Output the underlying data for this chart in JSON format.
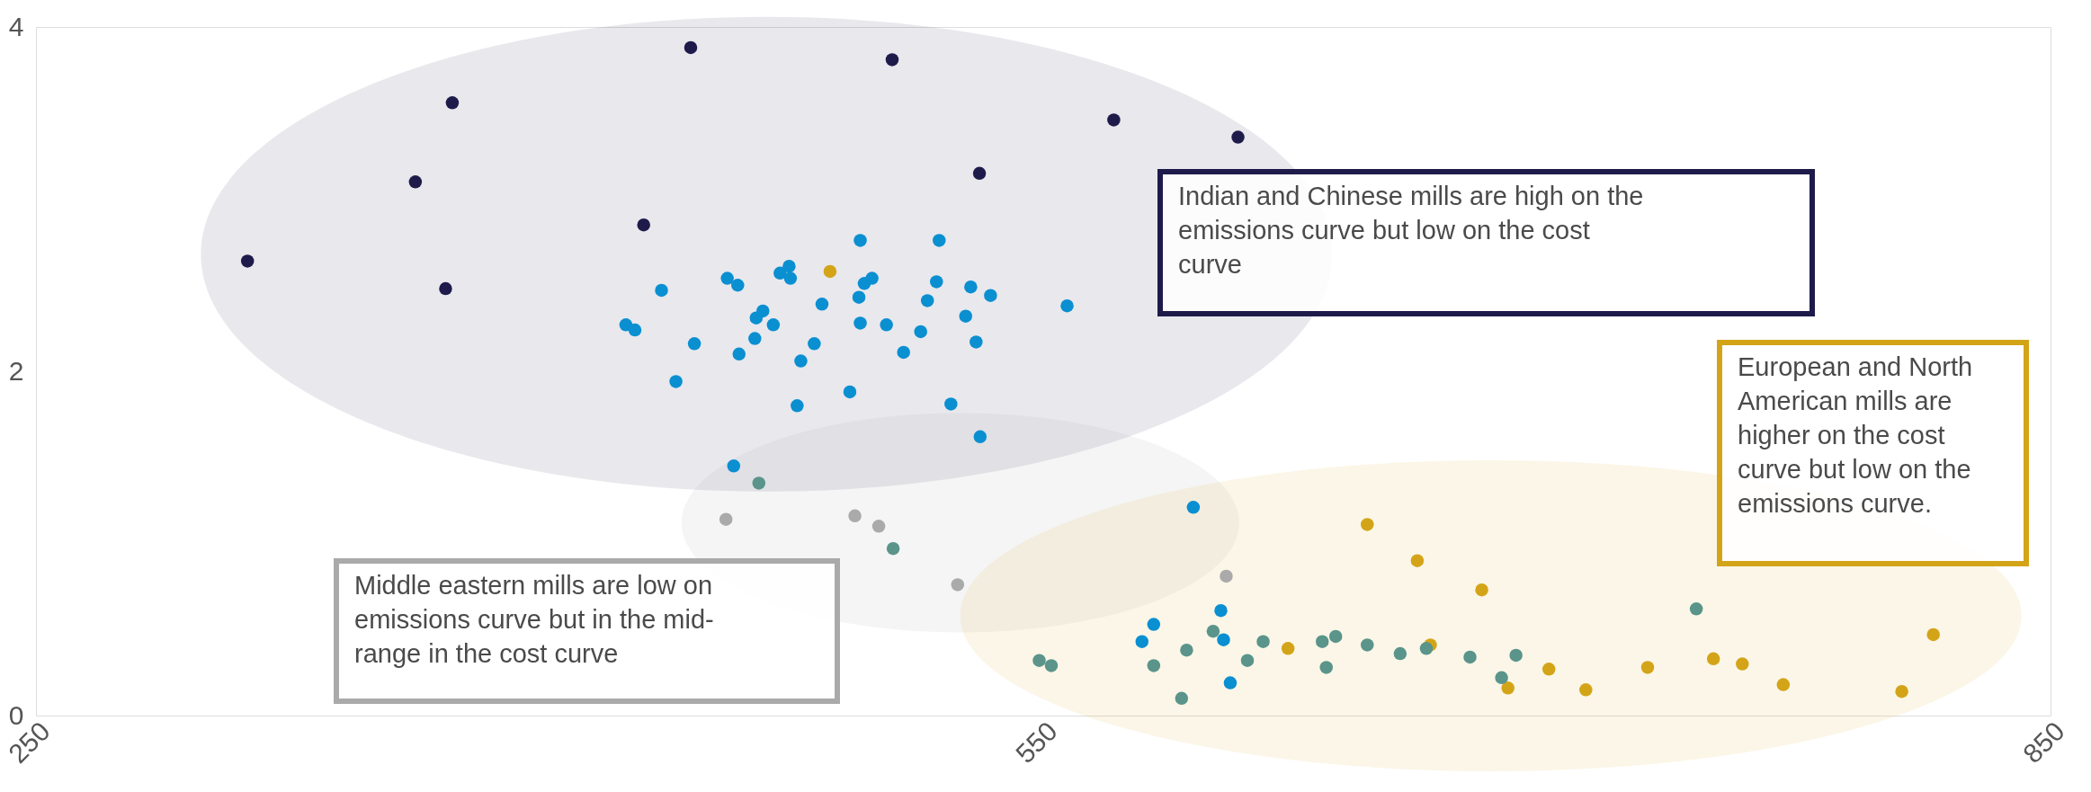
{
  "chart_data": {
    "type": "scatter",
    "xlim": [
      250,
      850
    ],
    "xticks": [
      250,
      550,
      850
    ],
    "ylim": [
      0,
      4
    ],
    "yticks": [
      0,
      2,
      4
    ],
    "grid": false,
    "legend": false,
    "marker": "circle",
    "series": [
      {
        "color": "#1e1b4b",
        "x": [
          313,
          374,
          363,
          372,
          431,
          445,
          505,
          531,
          571,
          608
        ],
        "values": [
          2.64,
          3.56,
          3.1,
          2.48,
          2.85,
          3.88,
          3.81,
          3.15,
          3.46,
          3.36
        ]
      },
      {
        "color": "#0a8fd1",
        "x": [
          425.7,
          428.4,
          436.3,
          440.6,
          446.1,
          455.9,
          459.0,
          459.4,
          464.1,
          464.5,
          466.5,
          469.6,
          471.6,
          474.3,
          474.7,
          476.7,
          477.8,
          481.8,
          484.1,
          492.4,
          495.1,
          495.5,
          495.5,
          496.7,
          499.0,
          503.3,
          508.4,
          513.5,
          515.5,
          519.0,
          518.2,
          522.5,
          526.9,
          528.4,
          530.0,
          531.2,
          534.3,
          557.1,
          457.8,
          594.7,
          602.9,
          582.9,
          579.4,
          603.7,
          605.7
        ],
        "values": [
          2.27,
          2.24,
          2.47,
          1.94,
          2.16,
          2.54,
          2.5,
          2.1,
          2.19,
          2.31,
          2.35,
          2.27,
          2.57,
          2.61,
          2.54,
          1.8,
          2.06,
          2.16,
          2.39,
          1.88,
          2.43,
          2.76,
          2.28,
          2.51,
          2.54,
          2.27,
          2.11,
          2.23,
          2.41,
          2.76,
          2.52,
          1.81,
          2.32,
          2.49,
          2.17,
          1.62,
          2.44,
          2.38,
          1.45,
          1.21,
          0.61,
          0.53,
          0.43,
          0.44,
          0.19
        ]
      },
      {
        "color": "#d4a418",
        "x": [
          486.5,
          646.5,
          661.4,
          665.3,
          680.6,
          622.9,
          688.4,
          700.6,
          711.6,
          730.0,
          749.6,
          758.2,
          770.4,
          805.7,
          815.1
        ],
        "values": [
          2.58,
          1.11,
          0.9,
          0.41,
          0.73,
          0.39,
          0.16,
          0.27,
          0.15,
          0.28,
          0.33,
          0.3,
          0.18,
          0.14,
          0.47
        ]
      },
      {
        "color": "#5a948a",
        "x": [
          465.3,
          505.3,
          548.8,
          552.4,
          582.9,
          592.7,
          591.2,
          600.6,
          610.8,
          615.5,
          633.1,
          634.3,
          637.1,
          646.5,
          656.3,
          664.1,
          677.1,
          686.5,
          690.8,
          744.5
        ],
        "values": [
          1.35,
          0.97,
          0.32,
          0.29,
          0.29,
          0.38,
          0.1,
          0.49,
          0.32,
          0.43,
          0.43,
          0.28,
          0.46,
          0.41,
          0.36,
          0.39,
          0.34,
          0.22,
          0.35,
          0.62
        ]
      },
      {
        "color": "#aaaaaa",
        "x": [
          455.5,
          493.9,
          501.0,
          524.5,
          604.5
        ],
        "values": [
          1.14,
          1.16,
          1.1,
          0.76,
          0.81
        ]
      }
    ],
    "annotations": [
      "Indian and Chinese mills are high on the emissions curve but low on the cost curve",
      "European and North American mills are higher on the cost curve but low on the emissions curve.",
      "Middle eastern mills are low on emissions curve but in the mid-range in the cost curve"
    ]
  }
}
